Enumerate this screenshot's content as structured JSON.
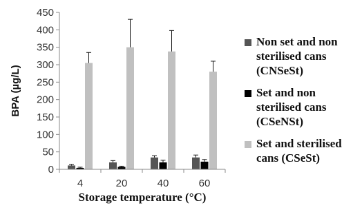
{
  "chart_data": {
    "type": "bar",
    "categories": [
      "4",
      "20",
      "40",
      "60"
    ],
    "series": [
      {
        "name": "Non set and non sterilised cans (CNSeSt)",
        "legend_lines": [
          "Non set and non",
          "sterilised cans",
          "(CNSeSt)"
        ],
        "color": "#555555",
        "values": [
          11,
          20,
          34,
          34
        ],
        "errors": [
          3,
          5,
          5,
          7
        ]
      },
      {
        "name": "Set and non sterilised cans (CSeNSt)",
        "legend_lines": [
          "Set and non",
          "sterilised cans",
          "(CSeNSt)"
        ],
        "color": "#000000",
        "values": [
          4,
          7,
          20,
          22
        ],
        "errors": [
          2,
          2,
          6,
          6
        ]
      },
      {
        "name": "Set and sterilised cans (CSeSt)",
        "legend_lines": [
          "Set and sterilised",
          "cans (CSeSt)"
        ],
        "color": "#c0c0c0",
        "values": [
          305,
          350,
          338,
          280
        ],
        "errors": [
          30,
          80,
          60,
          30
        ]
      }
    ],
    "xlabel": "Storage temperature (°C)",
    "ylabel": "BPA (µg/L)",
    "ylim": [
      0,
      450
    ],
    "yticks": [
      "0",
      "50",
      "100",
      "150",
      "200",
      "250",
      "300",
      "350",
      "400",
      "450"
    ],
    "grid": false,
    "legend_position": "right"
  }
}
